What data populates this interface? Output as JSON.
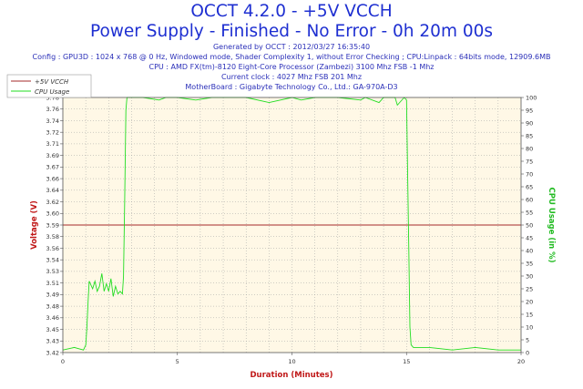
{
  "header": {
    "title_line1": "OCCT 4.2.0 - +5V VCCH",
    "title_line2": "Power Supply - Finished - No Error - 0h 20m 00s",
    "info": [
      "Generated by OCCT : 2012/03/27 16:35:40",
      "Config : GPU3D : 1024 x 768 @ 0 Hz, Windowed mode, Shader Complexity 1, without Error Checking ; CPU:Linpack : 64bits mode, 12909.6MB",
      "CPU : AMD FX(tm)-8120 Eight-Core Processor (Zambezi) 3100 Mhz FSB -1 Mhz",
      "Current clock : 4027 Mhz FSB 201 Mhz",
      "MotherBoard : Gigabyte Technology Co., Ltd.: GA-970A-D3"
    ]
  },
  "colors": {
    "title": "#1e2fd1",
    "voltage_line": "#a52a2a",
    "cpu_line": "#22dd22",
    "y_left_label": "#c01818",
    "y_right_label": "#22bb22",
    "x_label": "#c01818",
    "plot_bg": "#fff8e6",
    "grid": "#a0a0a0"
  },
  "chart_data": {
    "type": "line",
    "xlabel": "Duration (Minutes)",
    "ylabel": "Voltage (V)",
    "y2label": "CPU Usage (in %)",
    "xlim": [
      0,
      20
    ],
    "ylim": [
      3.42,
      3.78
    ],
    "y2lim": [
      0,
      100
    ],
    "x_ticks": [
      "0",
      "5",
      "10",
      "15",
      "20"
    ],
    "y_ticks": [
      "3.42",
      "3.43",
      "3.45",
      "3.46",
      "3.48",
      "3.49",
      "3.51",
      "3.53",
      "3.54",
      "3.56",
      "3.58",
      "3.59",
      "3.60",
      "3.62",
      "3.64",
      "3.66",
      "3.67",
      "3.69",
      "3.71",
      "3.72",
      "3.74",
      "3.76",
      "3.78"
    ],
    "y2_ticks": [
      "0",
      "5",
      "10",
      "15",
      "20",
      "25",
      "30",
      "35",
      "40",
      "45",
      "50",
      "55",
      "60",
      "65",
      "70",
      "75",
      "80",
      "85",
      "90",
      "95",
      "100"
    ],
    "grid": true,
    "legend_position": "top-left",
    "series": [
      {
        "name": "+5V VCCH",
        "axis": "left",
        "x": [
          0,
          20
        ],
        "y": [
          3.6,
          3.6
        ]
      },
      {
        "name": "CPU Usage",
        "axis": "right",
        "x": [
          0,
          0.5,
          0.9,
          1.0,
          1.05,
          1.1,
          1.15,
          1.2,
          1.3,
          1.4,
          1.5,
          1.6,
          1.7,
          1.8,
          1.9,
          2.0,
          2.1,
          2.2,
          2.3,
          2.4,
          2.5,
          2.6,
          2.65,
          2.7,
          2.75,
          2.8,
          3.5,
          4.2,
          4.5,
          5.0,
          5.8,
          6.5,
          7.0,
          8.0,
          9.0,
          10.0,
          10.4,
          11.0,
          12.0,
          13.0,
          13.2,
          13.8,
          14.0,
          14.4,
          14.5,
          14.6,
          14.9,
          15.0,
          15.05,
          15.1,
          15.15,
          15.2,
          15.3,
          16.0,
          17.0,
          18.0,
          19.0,
          20.0
        ],
        "y": [
          1,
          2,
          1,
          3,
          10,
          20,
          28,
          27,
          25,
          28,
          24,
          26,
          31,
          24,
          27,
          24,
          29,
          22,
          26,
          23,
          24,
          23,
          30,
          60,
          95,
          100,
          100,
          99,
          100,
          100,
          99,
          100,
          100,
          100,
          98,
          100,
          99,
          100,
          100,
          99,
          100,
          98,
          100,
          100,
          100,
          97,
          100,
          99,
          70,
          40,
          10,
          3,
          2,
          2,
          1,
          2,
          1,
          1
        ]
      }
    ]
  }
}
